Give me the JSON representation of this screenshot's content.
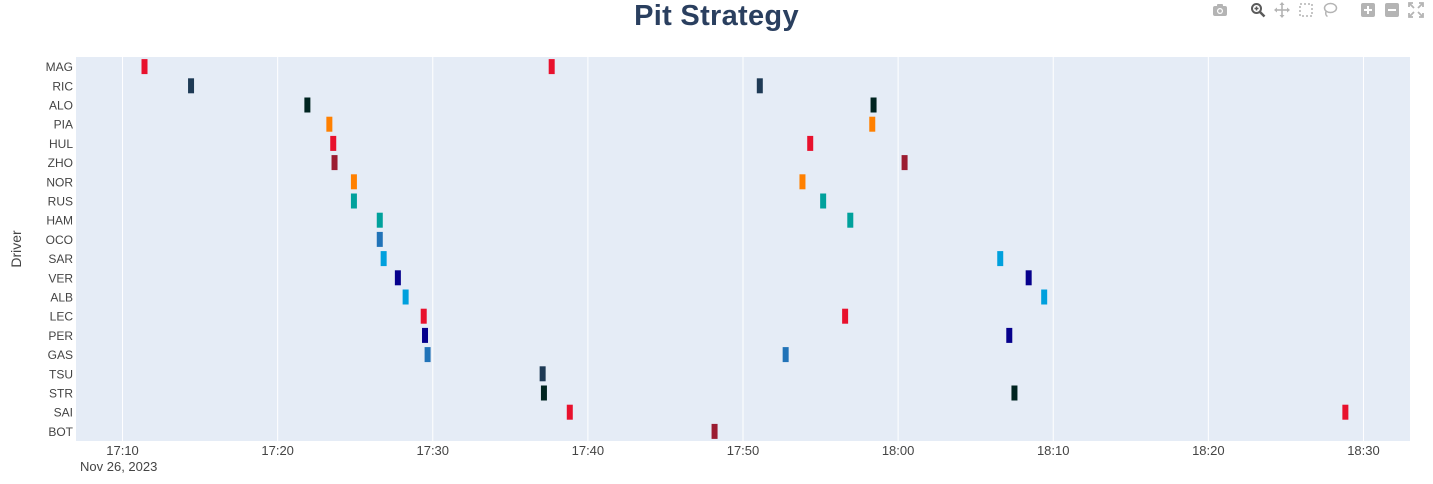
{
  "chart_data": {
    "type": "scatter",
    "title": "Pit Strategy",
    "ylabel": "Driver",
    "xlabel": "",
    "x_axis_type": "time",
    "x_date_label": "Nov 26, 2023",
    "xlim": [
      "17:07:00",
      "18:33:00"
    ],
    "x_ticks": [
      "17:10",
      "17:20",
      "17:30",
      "17:40",
      "17:50",
      "18:00",
      "18:10",
      "18:20",
      "18:30"
    ],
    "grid": true,
    "legend": "none",
    "drivers": [
      "MAG",
      "RIC",
      "ALO",
      "PIA",
      "HUL",
      "ZHO",
      "NOR",
      "RUS",
      "HAM",
      "OCO",
      "SAR",
      "VER",
      "ALB",
      "LEC",
      "PER",
      "GAS",
      "TSU",
      "STR",
      "SAI",
      "BOT"
    ],
    "pit_stops": [
      {
        "driver": "MAG",
        "times": [
          "17:11:25",
          "17:37:40"
        ],
        "color": "#e8112d"
      },
      {
        "driver": "RIC",
        "times": [
          "17:14:25",
          "17:51:05"
        ],
        "color": "#1e3a55"
      },
      {
        "driver": "ALO",
        "times": [
          "17:21:55",
          "17:58:25"
        ],
        "color": "#002420"
      },
      {
        "driver": "PIA",
        "times": [
          "17:23:20",
          "17:58:20"
        ],
        "color": "#ff8000"
      },
      {
        "driver": "HUL",
        "times": [
          "17:23:35",
          "17:54:20"
        ],
        "color": "#e8112d"
      },
      {
        "driver": "ZHO",
        "times": [
          "17:23:40",
          "18:00:25"
        ],
        "color": "#9b1c31"
      },
      {
        "driver": "NOR",
        "times": [
          "17:24:55",
          "17:53:50"
        ],
        "color": "#ff8000"
      },
      {
        "driver": "RUS",
        "times": [
          "17:24:55",
          "17:55:10"
        ],
        "color": "#00a19c"
      },
      {
        "driver": "HAM",
        "times": [
          "17:26:35",
          "17:56:55"
        ],
        "color": "#00a19c"
      },
      {
        "driver": "OCO",
        "times": [
          "17:26:35"
        ],
        "color": "#2173b8"
      },
      {
        "driver": "SAR",
        "times": [
          "17:26:50",
          "18:06:35"
        ],
        "color": "#00a0dd"
      },
      {
        "driver": "VER",
        "times": [
          "17:27:45",
          "18:08:25"
        ],
        "color": "#06008c"
      },
      {
        "driver": "ALB",
        "times": [
          "17:28:15",
          "18:09:25"
        ],
        "color": "#00a0dd"
      },
      {
        "driver": "LEC",
        "times": [
          "17:29:25",
          "17:56:35"
        ],
        "color": "#e8112d"
      },
      {
        "driver": "PER",
        "times": [
          "17:29:30",
          "18:07:10"
        ],
        "color": "#06008c"
      },
      {
        "driver": "GAS",
        "times": [
          "17:29:40",
          "17:52:45"
        ],
        "color": "#2173b8"
      },
      {
        "driver": "TSU",
        "times": [
          "17:37:05"
        ],
        "color": "#1e3a55"
      },
      {
        "driver": "STR",
        "times": [
          "17:37:10",
          "18:07:30"
        ],
        "color": "#002420"
      },
      {
        "driver": "SAI",
        "times": [
          "17:38:50",
          "18:28:50"
        ],
        "color": "#e8112d"
      },
      {
        "driver": "BOT",
        "times": [
          "17:48:10"
        ],
        "color": "#9b1c31"
      }
    ]
  },
  "modebar": {
    "icons": [
      "camera-icon",
      "zoom-icon",
      "pan-icon",
      "box-select-icon",
      "lasso-select-icon",
      "zoom-in-icon",
      "zoom-out-icon",
      "autoscale-icon"
    ]
  }
}
